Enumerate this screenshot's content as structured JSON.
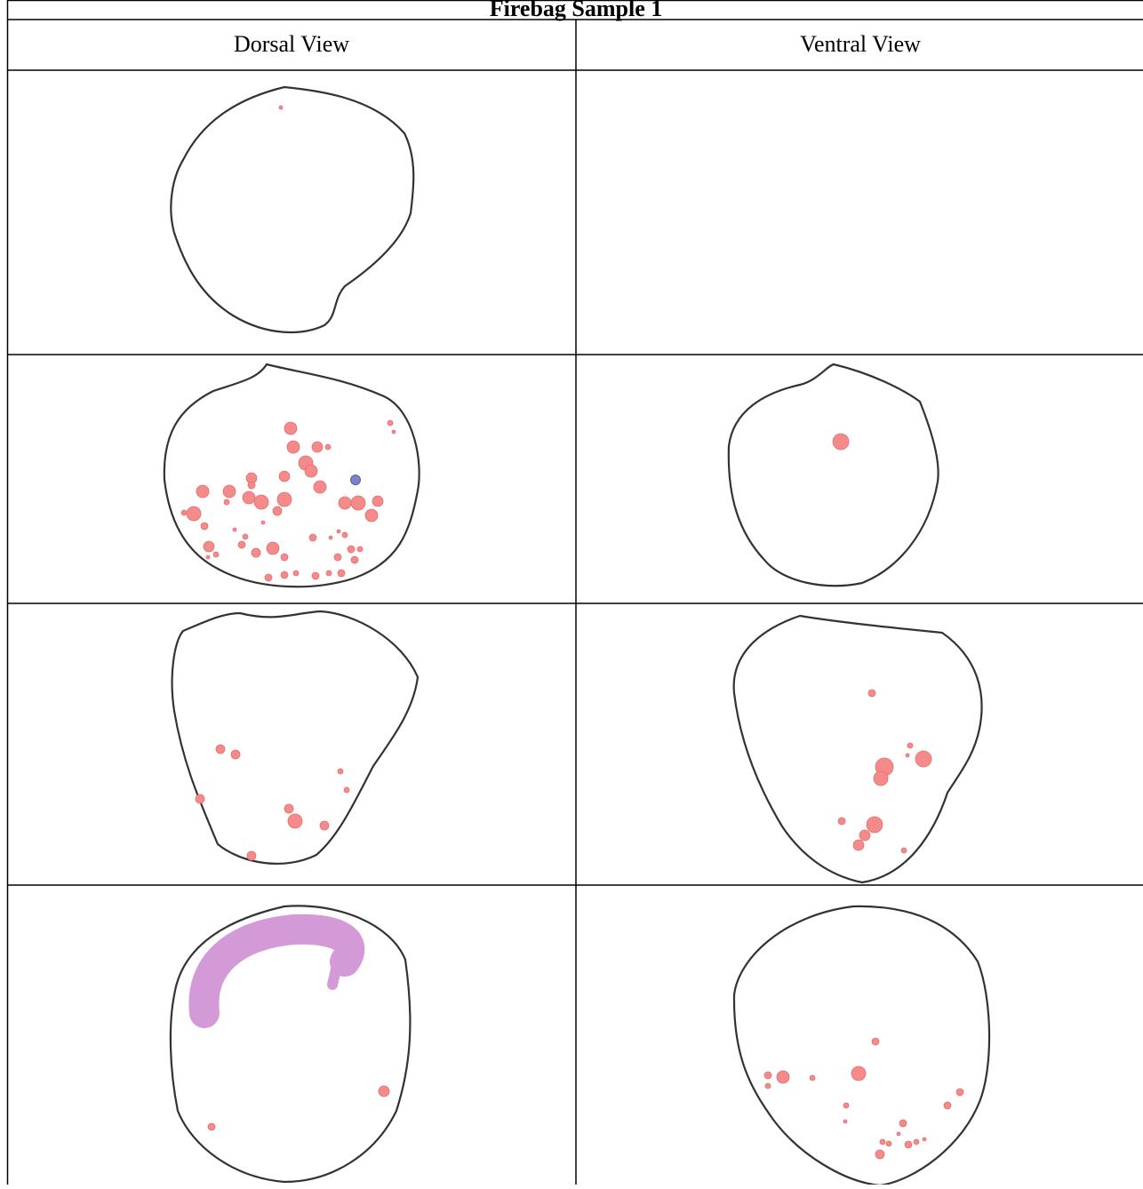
{
  "header": {
    "title": "Firebag Sample 1"
  },
  "table": {
    "columns": [
      "Dorsal View",
      "Ventral View"
    ]
  }
}
